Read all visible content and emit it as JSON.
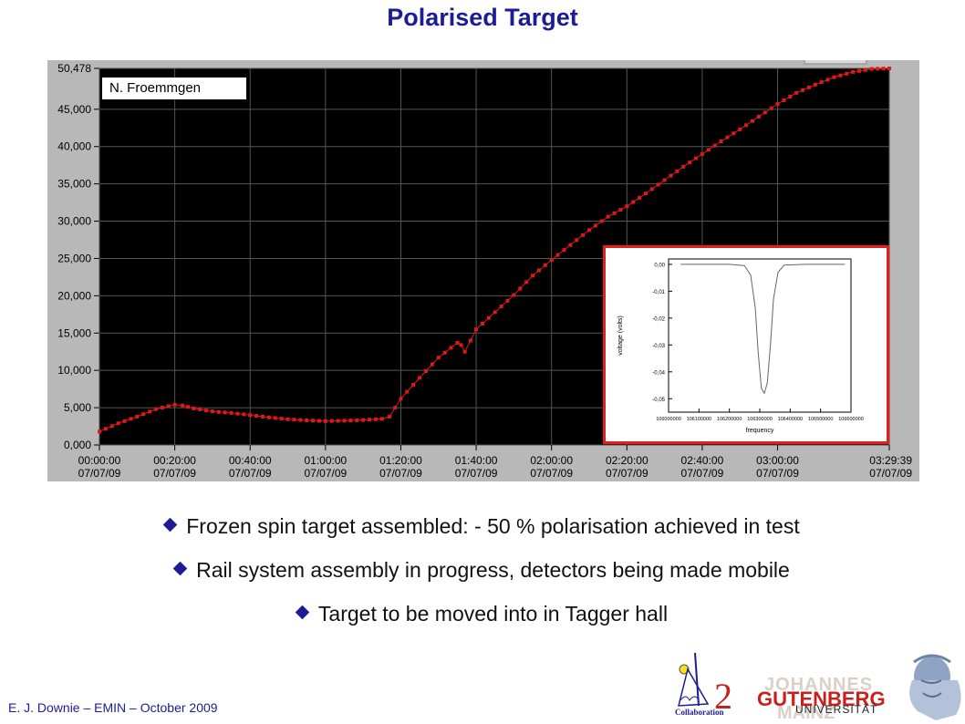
{
  "slide": {
    "title": "Polarised Target",
    "author_label": "N. Froemmgen",
    "footer": "E. J. Downie – EMIN – October 2009",
    "bullets": [
      "Frozen spin target assembled: - 50 % polarisation achieved in test",
      "Rail system assembly in progress, detectors being made mobile",
      "Target to be moved into in Tagger hall"
    ],
    "logos": {
      "collab_number": "2",
      "collab_word": "Collaboration",
      "univ_line1": "JOHANNES",
      "univ_line2": "GUTENBERG",
      "univ_line3": "UNIVERSITÄT",
      "univ_line4": "MAINZ"
    }
  },
  "colors": {
    "title": "#1c1c96",
    "series": "#e01818",
    "plot_bg": "#000000",
    "inset_border": "#e81c1c"
  },
  "chart_data": [
    {
      "type": "scatter",
      "y_ticks": [
        "0,000",
        "5,000",
        "10,000",
        "15,000",
        "20,000",
        "25,000",
        "30,000",
        "35,000",
        "40,000",
        "45,000",
        "50,478"
      ],
      "y_tick_values": [
        0,
        5000,
        10000,
        15000,
        20000,
        25000,
        30000,
        35000,
        40000,
        45000,
        50478
      ],
      "x_ticks": [
        {
          "minute": 0,
          "time": "00:00:00",
          "date": "07/07/09"
        },
        {
          "minute": 20,
          "time": "00:20:00",
          "date": "07/07/09"
        },
        {
          "minute": 40,
          "time": "00:40:00",
          "date": "07/07/09"
        },
        {
          "minute": 60,
          "time": "01:00:00",
          "date": "07/07/09"
        },
        {
          "minute": 80,
          "time": "01:20:00",
          "date": "07/07/09"
        },
        {
          "minute": 100,
          "time": "01:40:00",
          "date": "07/07/09"
        },
        {
          "minute": 120,
          "time": "02:00:00",
          "date": "07/07/09"
        },
        {
          "minute": 140,
          "time": "02:20:00",
          "date": "07/07/09"
        },
        {
          "minute": 160,
          "time": "02:40:00",
          "date": "07/07/09"
        },
        {
          "minute": 180,
          "time": "03:00:00",
          "date": "07/07/09"
        },
        {
          "minute": 209.65,
          "time": "03:29:39",
          "date": "07/07/09"
        }
      ],
      "xlim": [
        0,
        209.65
      ],
      "ylim": [
        0,
        50478
      ],
      "grid": true,
      "series": [
        {
          "x": [
            0,
            5,
            10,
            15,
            20,
            22,
            25,
            30,
            35,
            40,
            45,
            50,
            55,
            60,
            65,
            70,
            75,
            77,
            80,
            85,
            90,
            95,
            96,
            97,
            100,
            105,
            110,
            115,
            120,
            125,
            130,
            135,
            140,
            145,
            150,
            155,
            160,
            165,
            170,
            175,
            180,
            185,
            190,
            195,
            200,
            205,
            209.65
          ],
          "y": [
            1800,
            2900,
            3800,
            4800,
            5400,
            5300,
            4900,
            4500,
            4300,
            4000,
            3700,
            3450,
            3300,
            3200,
            3250,
            3350,
            3500,
            3800,
            6200,
            9000,
            11700,
            13700,
            13400,
            12500,
            15500,
            17800,
            20100,
            22700,
            24800,
            26800,
            28800,
            30600,
            32000,
            33700,
            35500,
            37300,
            39000,
            40700,
            42300,
            44000,
            45700,
            47200,
            48300,
            49300,
            50000,
            50400,
            50478
          ]
        }
      ]
    },
    {
      "type": "line",
      "xlabel": "frequency",
      "ylabel": "voltage (volts)",
      "x_ticks": [
        "106000000",
        "106100000",
        "106200000",
        "106300000",
        "106400000",
        "106500000",
        "106600000"
      ],
      "x_tick_values": [
        106000000,
        106100000,
        106200000,
        106300000,
        106400000,
        106500000,
        106600000
      ],
      "y_ticks": [
        "0,00",
        "-0,01",
        "-0,02",
        "-0,03",
        "-0,04",
        "-0,05"
      ],
      "y_tick_values": [
        0,
        -0.01,
        -0.02,
        -0.03,
        -0.04,
        -0.05
      ],
      "xlim": [
        106000000,
        106600000
      ],
      "ylim": [
        -0.055,
        0.002
      ],
      "series": [
        {
          "x": [
            106040000,
            106100000,
            106200000,
            106250000,
            106270000,
            106285000,
            106295000,
            106305000,
            106315000,
            106325000,
            106335000,
            106345000,
            106360000,
            106380000,
            106450000,
            106520000,
            106580000
          ],
          "y": [
            0,
            0,
            0,
            -0.0005,
            -0.004,
            -0.016,
            -0.033,
            -0.046,
            -0.048,
            -0.044,
            -0.03,
            -0.013,
            -0.003,
            -0.0003,
            0,
            0,
            0
          ]
        }
      ]
    }
  ]
}
